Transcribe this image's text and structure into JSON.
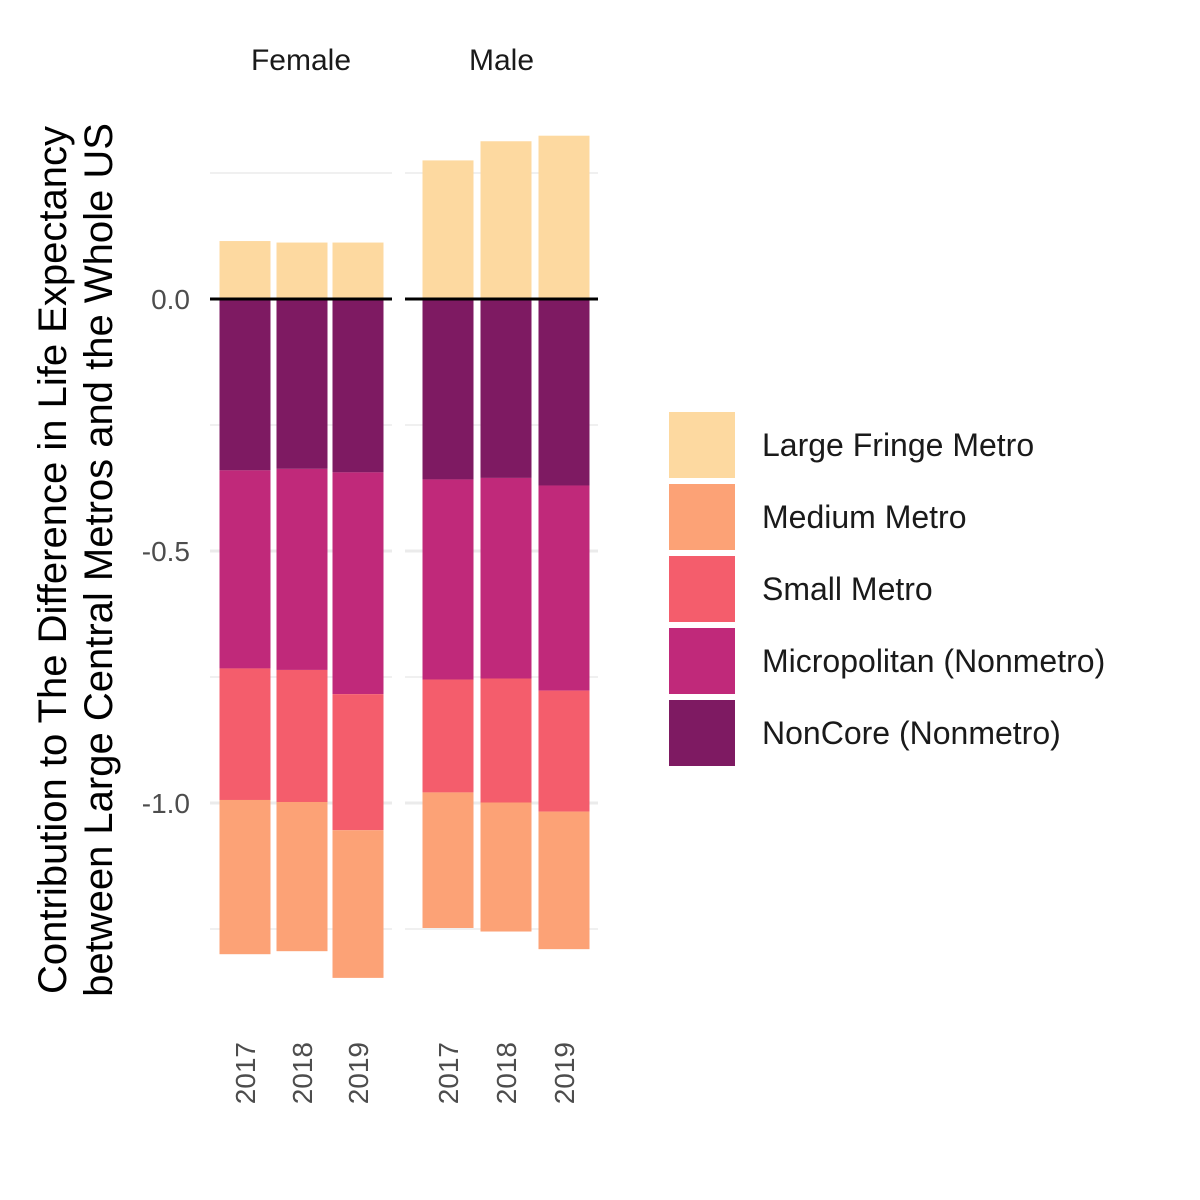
{
  "chart_data": {
    "type": "bar",
    "stacked": true,
    "ylabel": [
      "Contribution to The Difference in Life Expectancy",
      "between Large Central Metros and the Whole US"
    ],
    "ylim": [
      -1.38,
      0.34
    ],
    "y_ticks": [
      0.0,
      -0.5,
      -1.0
    ],
    "y_tick_labels": [
      "0.0",
      "-0.5",
      "-1.0"
    ],
    "categories": [
      "2017",
      "2018",
      "2019"
    ],
    "facets": [
      {
        "label": "Female",
        "series": [
          {
            "name": "Large Fringe Metro",
            "values": [
              0.115,
              0.112,
              0.112
            ]
          },
          {
            "name": "NonCore (Nonmetro)",
            "values": [
              -0.34,
              -0.337,
              -0.344
            ]
          },
          {
            "name": "Micropolitan (Nonmetro)",
            "values": [
              -0.393,
              -0.399,
              -0.44
            ]
          },
          {
            "name": "Small Metro",
            "values": [
              -0.261,
              -0.262,
              -0.27
            ]
          },
          {
            "name": "Medium Metro",
            "values": [
              -0.306,
              -0.296,
              -0.293
            ]
          }
        ]
      },
      {
        "label": "Male",
        "series": [
          {
            "name": "Large Fringe Metro",
            "values": [
              0.275,
              0.313,
              0.324
            ]
          },
          {
            "name": "NonCore (Nonmetro)",
            "values": [
              -0.358,
              -0.355,
              -0.37
            ]
          },
          {
            "name": "Micropolitan (Nonmetro)",
            "values": [
              -0.397,
              -0.398,
              -0.407
            ]
          },
          {
            "name": "Small Metro",
            "values": [
              -0.224,
              -0.246,
              -0.24
            ]
          },
          {
            "name": "Medium Metro",
            "values": [
              -0.269,
              -0.256,
              -0.273
            ]
          }
        ]
      }
    ],
    "legend": {
      "placement": "right",
      "entries": [
        {
          "name": "Large Fringe Metro",
          "color": "#FDD9A0"
        },
        {
          "name": "Medium Metro",
          "color": "#FCA276"
        },
        {
          "name": "Small Metro",
          "color": "#F45D6C"
        },
        {
          "name": "Micropolitan (Nonmetro)",
          "color": "#C0297A"
        },
        {
          "name": "NonCore (Nonmetro)",
          "color": "#7E1A62"
        }
      ]
    },
    "grid": true,
    "zero_line": true
  }
}
